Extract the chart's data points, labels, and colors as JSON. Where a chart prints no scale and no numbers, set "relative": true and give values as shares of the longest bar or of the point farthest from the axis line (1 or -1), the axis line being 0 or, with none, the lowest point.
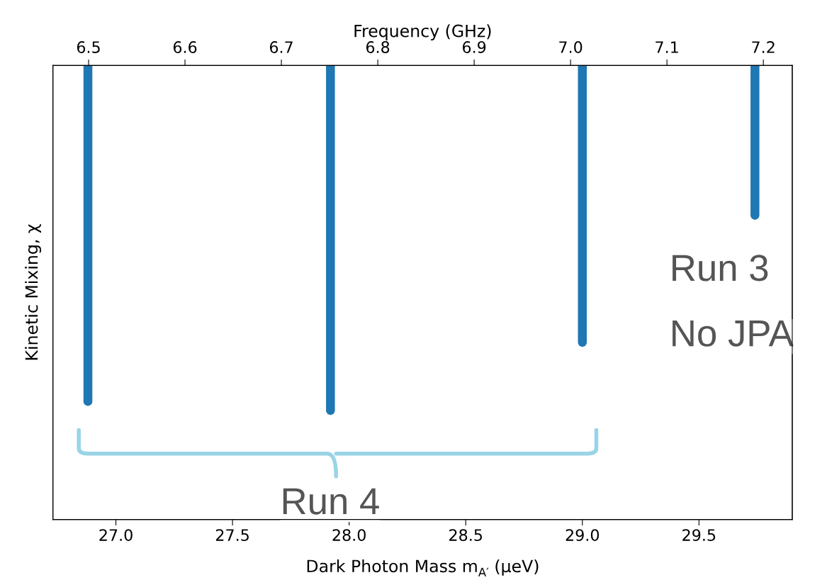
{
  "chart_data": {
    "type": "line",
    "relative": true,
    "xlabel": "Dark Photon Mass m$_{A′}$ (μeV)",
    "ylabel": "Kinetic Mixing, χ",
    "x2label": "Frequency (GHz)",
    "xlim": [
      26.73,
      29.9
    ],
    "xticks": [
      {
        "value": 27.0,
        "label": "27.0"
      },
      27.5,
      {
        "value": 28.0,
        "label": "28.0"
      },
      28.5,
      {
        "value": 29.0,
        "label": "29.0"
      },
      29.5
    ],
    "x2lim": [
      6.463,
      7.23
    ],
    "x2ticks": [
      6.5,
      6.6,
      6.7,
      6.8,
      6.9,
      {
        "value": 7.0,
        "label": "7.0"
      },
      7.1,
      7.2
    ],
    "line_style": "solid",
    "grid": false,
    "legend": false,
    "series": [
      {
        "color": "#1f77b4",
        "x": [
          26.88,
          26.88
        ],
        "values": [
          0.26,
          1
        ]
      },
      {
        "color": "#1f77b4",
        "x": [
          27.92,
          27.92
        ],
        "values": [
          0.24,
          1
        ]
      },
      {
        "color": "#1f77b4",
        "x": [
          29.0,
          29.0
        ],
        "values": [
          0.39,
          1
        ]
      },
      {
        "color": "#1f77b4",
        "x": [
          29.74,
          29.74
        ],
        "values": [
          0.67,
          1
        ]
      }
    ],
    "annotations": [
      "Run 3",
      "No JPA",
      "Run 4"
    ]
  }
}
